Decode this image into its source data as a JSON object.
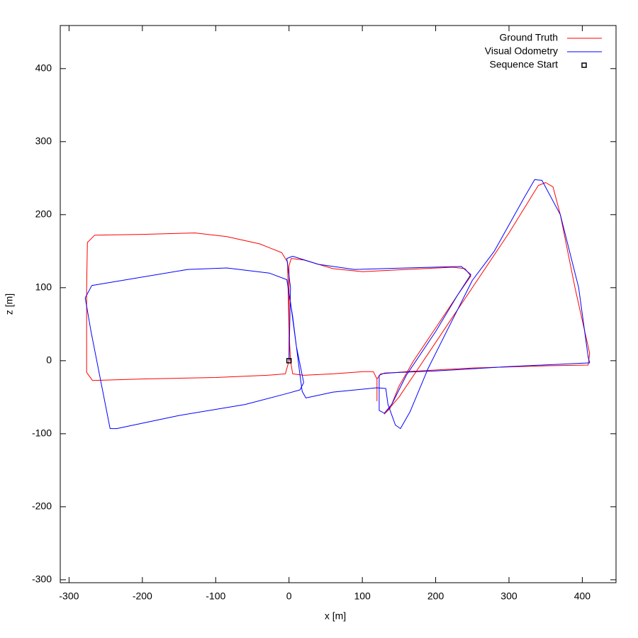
{
  "chart_data": {
    "type": "line",
    "xlabel": "x [m]",
    "ylabel": "z [m]",
    "xlim": [
      -312,
      446
    ],
    "ylim": [
      -304,
      459
    ],
    "xticks": [
      -300,
      -200,
      -100,
      0,
      100,
      200,
      300,
      400
    ],
    "yticks": [
      -300,
      -200,
      -100,
      0,
      100,
      200,
      300,
      400
    ],
    "legend": "top right",
    "series": [
      {
        "name": "Ground Truth",
        "color": "#ff0000",
        "style": "lines",
        "x": [
          0,
          0,
          0,
          3,
          20,
          60,
          100,
          160,
          224,
          240,
          248,
          230,
          200,
          170,
          150,
          138,
          130,
          150,
          180,
          220,
          260,
          300,
          340,
          350,
          360,
          370,
          390,
          410,
          408,
          350,
          250,
          160,
          125,
          120,
          120,
          120,
          115,
          100,
          60,
          20,
          5,
          2,
          0,
          -2,
          -10,
          -40,
          -85,
          -128,
          -200,
          -265,
          -275,
          -276,
          -276,
          -276,
          -268,
          -200,
          -100,
          -30,
          -5,
          0
        ],
        "values": [
          0,
          60,
          130,
          140,
          138,
          126,
          122,
          125,
          128,
          126,
          116,
          90,
          45,
          0,
          -35,
          -65,
          -73,
          -50,
          -5,
          55,
          115,
          175,
          240,
          244,
          238,
          200,
          100,
          10,
          -6,
          -7,
          -10,
          -15,
          -18,
          -25,
          -55,
          -25,
          -15,
          -15,
          -18,
          -20,
          -18,
          0,
          40,
          135,
          148,
          160,
          170,
          175,
          173,
          172,
          162,
          100,
          0,
          -16,
          -27,
          -25,
          -23,
          -20,
          -18,
          0
        ]
      },
      {
        "name": "Visual Odometry",
        "color": "#0000ff",
        "style": "lines",
        "x": [
          0,
          2,
          -3,
          5,
          40,
          89,
          160,
          235,
          248,
          230,
          200,
          160,
          140,
          130,
          123,
          123,
          130,
          200,
          300,
          410,
          408,
          395,
          370,
          345,
          335,
          320,
          280,
          250,
          220,
          190,
          165,
          152,
          145,
          135,
          132,
          120,
          60,
          23,
          18,
          15,
          5,
          -3,
          -27,
          -85,
          -138,
          -269,
          -278,
          -270,
          -244,
          -235,
          -150,
          -60,
          -3,
          15,
          20,
          10,
          2
        ],
        "values": [
          0,
          100,
          140,
          143,
          132,
          125,
          127,
          129,
          118,
          90,
          40,
          -20,
          -60,
          -72,
          -68,
          -20,
          -17,
          -14,
          -8,
          -3,
          5,
          100,
          200,
          247,
          248,
          222,
          150,
          110,
          50,
          -10,
          -70,
          -93,
          -88,
          -60,
          -38,
          -37,
          -43,
          -51,
          -42,
          -20,
          60,
          111,
          120,
          127,
          125,
          103,
          86,
          40,
          -93,
          -93,
          -75,
          -60,
          -45,
          -40,
          -30,
          20,
          80
        ]
      },
      {
        "name": "Sequence Start",
        "color": "#000000",
        "style": "points",
        "x": [
          0
        ],
        "values": [
          0
        ]
      }
    ]
  }
}
